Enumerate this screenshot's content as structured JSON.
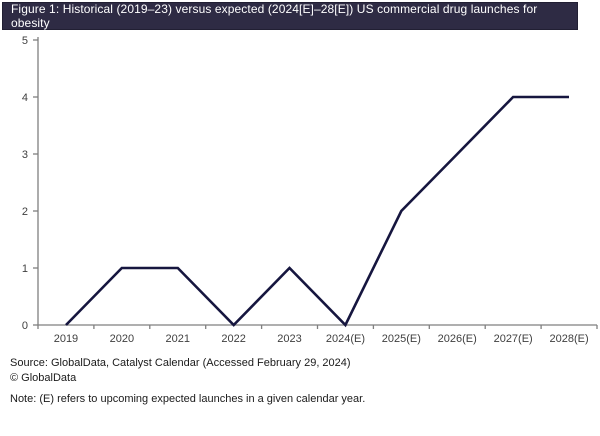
{
  "title_bar": {
    "text": "Figure 1: Historical (2019–23) versus expected (2024[E]–28[E]) US commercial drug launches for obesity"
  },
  "footer": {
    "source": "Source: GlobalData, Catalyst Calendar (Accessed February 29, 2024)",
    "copyright": "© GlobalData",
    "note": "Note: (E) refers to upcoming expected launches in a given calendar year."
  },
  "chart_data": {
    "type": "line",
    "categories": [
      "2019",
      "2020",
      "2021",
      "2022",
      "2023",
      "2024(E)",
      "2025(E)",
      "2026(E)",
      "2027(E)",
      "2028(E)"
    ],
    "values": [
      0,
      1,
      1,
      0,
      1,
      0,
      2,
      3,
      4,
      4
    ],
    "title": "US commercial drug launches for obesity",
    "xlabel": "",
    "ylabel": "",
    "ylim": [
      0,
      5
    ],
    "yticks": [
      0,
      1,
      2,
      3,
      4,
      5
    ],
    "grid": false,
    "legend": "none",
    "line_color": "#16163f",
    "axis_color": "#7f7f7f",
    "tick_label_color": "#3f3f3f"
  },
  "colors": {
    "title_bar_bg": "#2e2b44",
    "title_bar_text": "#ffffff"
  }
}
